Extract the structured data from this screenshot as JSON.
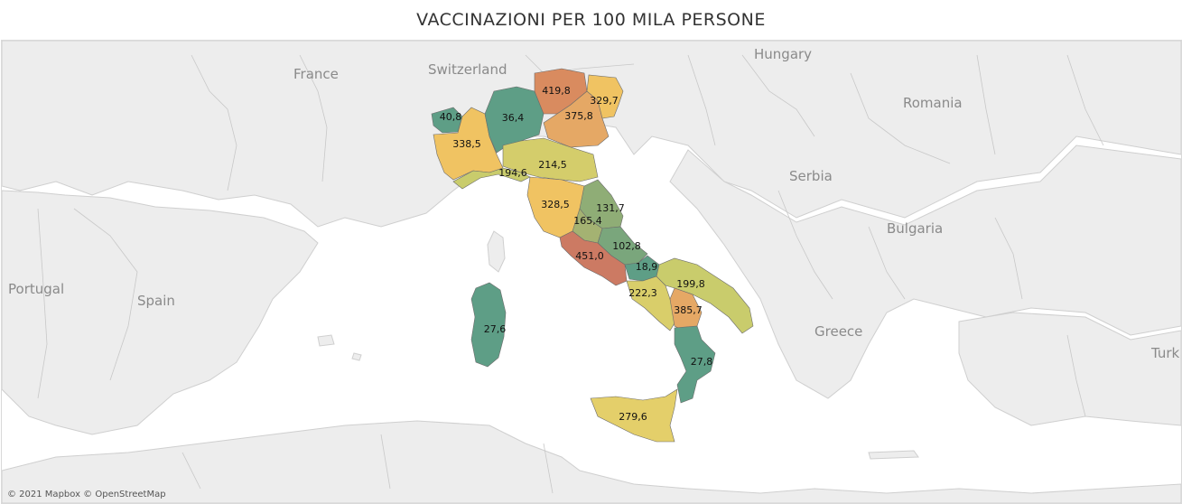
{
  "title": "VACCINAZIONI PER 100 MILA PERSONE",
  "attribution": "© 2021 Mapbox © OpenStreetMap",
  "country_labels": {
    "france": "France",
    "switzerland": "Switzerland",
    "hungary": "Hungary",
    "romania": "Romania",
    "serbia": "Serbia",
    "bulgaria": "Bulgaria",
    "portugal": "Portugal",
    "spain": "Spain",
    "greece": "Greece",
    "turkey": "Turk"
  },
  "regions": [
    {
      "id": "valle-d-aosta",
      "value": "40,8",
      "color": "#5e9e86"
    },
    {
      "id": "lombardia",
      "value": "36,4",
      "color": "#5e9e86"
    },
    {
      "id": "trentino-alto-adige",
      "value": "419,8",
      "color": "#d98b5f"
    },
    {
      "id": "friuli-venezia-giulia",
      "value": "329,7",
      "color": "#f0c362"
    },
    {
      "id": "veneto",
      "value": "375,8",
      "color": "#e5a865"
    },
    {
      "id": "piemonte",
      "value": "338,5",
      "color": "#f0c362"
    },
    {
      "id": "liguria",
      "value": "194,6",
      "color": "#c9cc6c"
    },
    {
      "id": "emilia-romagna",
      "value": "214,5",
      "color": "#d4cd6b"
    },
    {
      "id": "toscana",
      "value": "328,5",
      "color": "#f0c362"
    },
    {
      "id": "marche",
      "value": "131,7",
      "color": "#8fad76"
    },
    {
      "id": "umbria",
      "value": "165,4",
      "color": "#a4b272"
    },
    {
      "id": "abruzzo",
      "value": "102,8",
      "color": "#7aa67c"
    },
    {
      "id": "lazio",
      "value": "451,0",
      "color": "#cc7a63"
    },
    {
      "id": "molise",
      "value": "18,9",
      "color": "#5e9e86"
    },
    {
      "id": "campania",
      "value": "222,3",
      "color": "#d9ce6a"
    },
    {
      "id": "puglia",
      "value": "199,8",
      "color": "#c9cc6c"
    },
    {
      "id": "basilicata",
      "value": "385,7",
      "color": "#e5a865"
    },
    {
      "id": "calabria",
      "value": "27,8",
      "color": "#5e9e86"
    },
    {
      "id": "sicilia",
      "value": "279,6",
      "color": "#e4cf6a"
    },
    {
      "id": "sardegna",
      "value": "27,6",
      "color": "#5e9e86"
    }
  ]
}
